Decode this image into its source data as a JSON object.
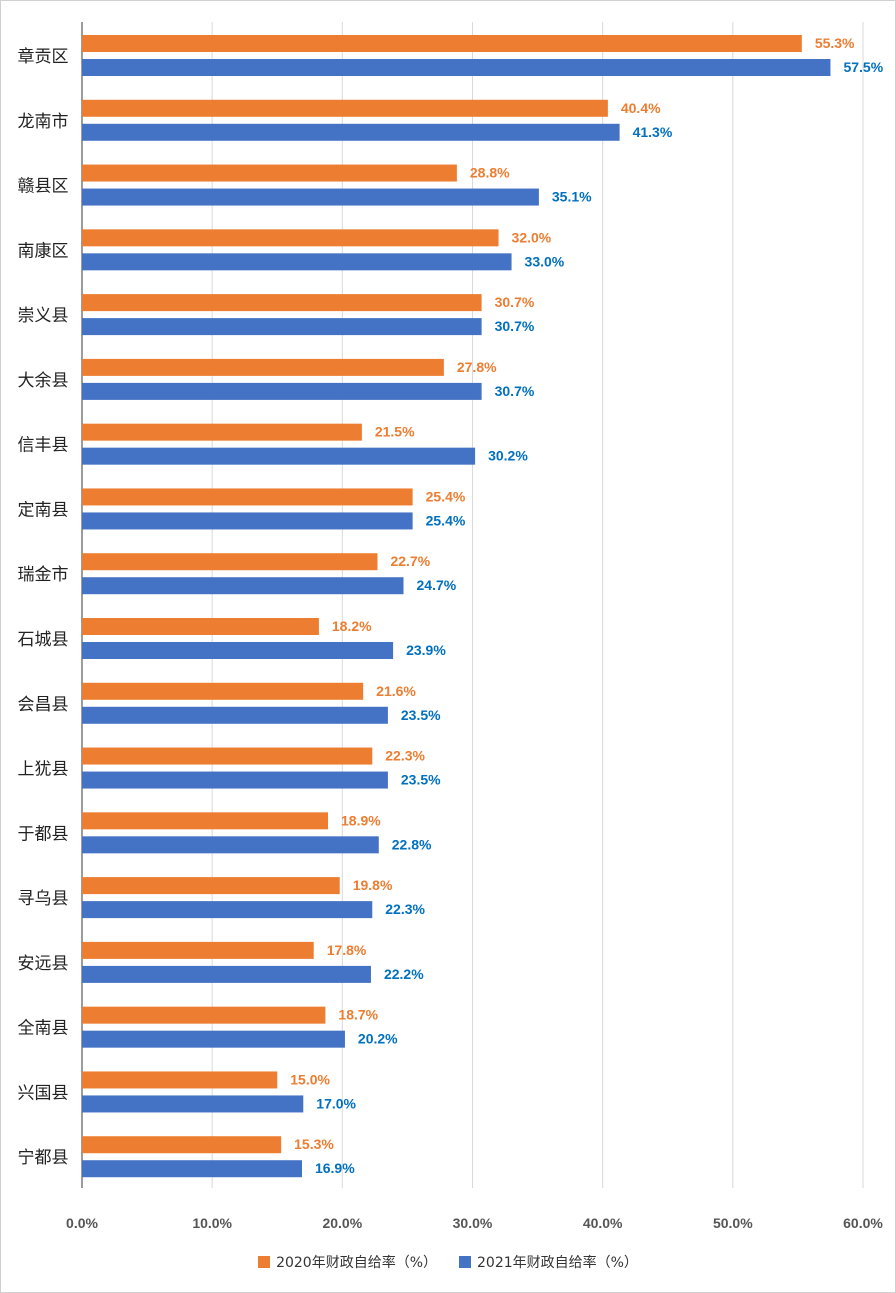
{
  "chart_data": {
    "type": "bar",
    "orientation": "horizontal",
    "categories": [
      "章贡区",
      "龙南市",
      "赣县区",
      "南康区",
      "崇义县",
      "大余县",
      "信丰县",
      "定南县",
      "瑞金市",
      "石城县",
      "会昌县",
      "上犹县",
      "于都县",
      "寻乌县",
      "安远县",
      "全南县",
      "兴国县",
      "宁都县"
    ],
    "series": [
      {
        "name": "2020年财政自给率（%）",
        "color": "#ED7D31",
        "values": [
          55.3,
          40.4,
          28.8,
          32.0,
          30.7,
          27.8,
          21.5,
          25.4,
          22.7,
          18.2,
          21.6,
          22.3,
          18.9,
          19.8,
          17.8,
          18.7,
          15.0,
          15.3
        ],
        "labels": [
          "55.3%",
          "40.4%",
          "28.8%",
          "32.0%",
          "30.7%",
          "27.8%",
          "21.5%",
          "25.4%",
          "22.7%",
          "18.2%",
          "21.6%",
          "22.3%",
          "18.9%",
          "19.8%",
          "17.8%",
          "18.7%",
          "15.0%",
          "15.3%"
        ],
        "label_color": "#ED7D31"
      },
      {
        "name": "2021年财政自给率（%）",
        "color": "#4472C4",
        "values": [
          57.5,
          41.3,
          35.1,
          33.0,
          30.7,
          30.7,
          30.2,
          25.4,
          24.7,
          23.9,
          23.5,
          23.5,
          22.8,
          22.3,
          22.2,
          20.2,
          17.0,
          16.9
        ],
        "labels": [
          "57.5%",
          "41.3%",
          "35.1%",
          "33.0%",
          "30.7%",
          "30.7%",
          "30.2%",
          "25.4%",
          "24.7%",
          "23.9%",
          "23.5%",
          "23.5%",
          "22.8%",
          "22.3%",
          "22.2%",
          "20.2%",
          "17.0%",
          "16.9%"
        ],
        "label_color": "#0070C0"
      }
    ],
    "xlim": [
      0,
      60
    ],
    "xticks": [
      "0.0%",
      "10.0%",
      "20.0%",
      "30.0%",
      "40.0%",
      "50.0%",
      "60.0%"
    ],
    "grid": true,
    "legend_position": "bottom",
    "gridline_color": "#d9d9d9",
    "axis_color": "#595959"
  },
  "legend": {
    "item_2020": "2020年财政自给率（%）",
    "item_2021": "2021年财政自给率（%）"
  }
}
